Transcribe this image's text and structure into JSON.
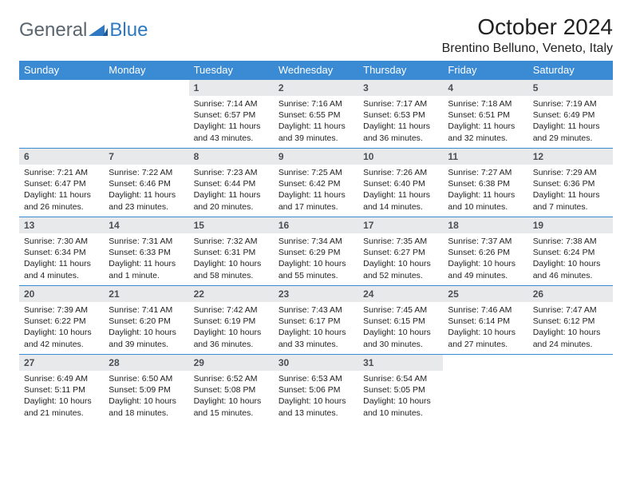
{
  "brand": {
    "general": "General",
    "blue": "Blue"
  },
  "title": "October 2024",
  "location": "Brentino Belluno, Veneto, Italy",
  "colors": {
    "header_bg": "#3b8bd4",
    "header_text": "#ffffff",
    "daynum_bg": "#e7e9eb",
    "daynum_text": "#4a4f55",
    "border": "#3b8bd4",
    "logo_gray": "#5a6570",
    "logo_blue": "#2f79c2",
    "background": "#ffffff"
  },
  "typography": {
    "title_fontsize": 28,
    "location_fontsize": 16,
    "header_fontsize": 13,
    "daynum_fontsize": 12,
    "body_fontsize": 10.5
  },
  "weekdays": [
    "Sunday",
    "Monday",
    "Tuesday",
    "Wednesday",
    "Thursday",
    "Friday",
    "Saturday"
  ],
  "weeks": [
    [
      null,
      null,
      {
        "n": "1",
        "sunrise": "Sunrise: 7:14 AM",
        "sunset": "Sunset: 6:57 PM",
        "day1": "Daylight: 11 hours",
        "day2": "and 43 minutes."
      },
      {
        "n": "2",
        "sunrise": "Sunrise: 7:16 AM",
        "sunset": "Sunset: 6:55 PM",
        "day1": "Daylight: 11 hours",
        "day2": "and 39 minutes."
      },
      {
        "n": "3",
        "sunrise": "Sunrise: 7:17 AM",
        "sunset": "Sunset: 6:53 PM",
        "day1": "Daylight: 11 hours",
        "day2": "and 36 minutes."
      },
      {
        "n": "4",
        "sunrise": "Sunrise: 7:18 AM",
        "sunset": "Sunset: 6:51 PM",
        "day1": "Daylight: 11 hours",
        "day2": "and 32 minutes."
      },
      {
        "n": "5",
        "sunrise": "Sunrise: 7:19 AM",
        "sunset": "Sunset: 6:49 PM",
        "day1": "Daylight: 11 hours",
        "day2": "and 29 minutes."
      }
    ],
    [
      {
        "n": "6",
        "sunrise": "Sunrise: 7:21 AM",
        "sunset": "Sunset: 6:47 PM",
        "day1": "Daylight: 11 hours",
        "day2": "and 26 minutes."
      },
      {
        "n": "7",
        "sunrise": "Sunrise: 7:22 AM",
        "sunset": "Sunset: 6:46 PM",
        "day1": "Daylight: 11 hours",
        "day2": "and 23 minutes."
      },
      {
        "n": "8",
        "sunrise": "Sunrise: 7:23 AM",
        "sunset": "Sunset: 6:44 PM",
        "day1": "Daylight: 11 hours",
        "day2": "and 20 minutes."
      },
      {
        "n": "9",
        "sunrise": "Sunrise: 7:25 AM",
        "sunset": "Sunset: 6:42 PM",
        "day1": "Daylight: 11 hours",
        "day2": "and 17 minutes."
      },
      {
        "n": "10",
        "sunrise": "Sunrise: 7:26 AM",
        "sunset": "Sunset: 6:40 PM",
        "day1": "Daylight: 11 hours",
        "day2": "and 14 minutes."
      },
      {
        "n": "11",
        "sunrise": "Sunrise: 7:27 AM",
        "sunset": "Sunset: 6:38 PM",
        "day1": "Daylight: 11 hours",
        "day2": "and 10 minutes."
      },
      {
        "n": "12",
        "sunrise": "Sunrise: 7:29 AM",
        "sunset": "Sunset: 6:36 PM",
        "day1": "Daylight: 11 hours",
        "day2": "and 7 minutes."
      }
    ],
    [
      {
        "n": "13",
        "sunrise": "Sunrise: 7:30 AM",
        "sunset": "Sunset: 6:34 PM",
        "day1": "Daylight: 11 hours",
        "day2": "and 4 minutes."
      },
      {
        "n": "14",
        "sunrise": "Sunrise: 7:31 AM",
        "sunset": "Sunset: 6:33 PM",
        "day1": "Daylight: 11 hours",
        "day2": "and 1 minute."
      },
      {
        "n": "15",
        "sunrise": "Sunrise: 7:32 AM",
        "sunset": "Sunset: 6:31 PM",
        "day1": "Daylight: 10 hours",
        "day2": "and 58 minutes."
      },
      {
        "n": "16",
        "sunrise": "Sunrise: 7:34 AM",
        "sunset": "Sunset: 6:29 PM",
        "day1": "Daylight: 10 hours",
        "day2": "and 55 minutes."
      },
      {
        "n": "17",
        "sunrise": "Sunrise: 7:35 AM",
        "sunset": "Sunset: 6:27 PM",
        "day1": "Daylight: 10 hours",
        "day2": "and 52 minutes."
      },
      {
        "n": "18",
        "sunrise": "Sunrise: 7:37 AM",
        "sunset": "Sunset: 6:26 PM",
        "day1": "Daylight: 10 hours",
        "day2": "and 49 minutes."
      },
      {
        "n": "19",
        "sunrise": "Sunrise: 7:38 AM",
        "sunset": "Sunset: 6:24 PM",
        "day1": "Daylight: 10 hours",
        "day2": "and 46 minutes."
      }
    ],
    [
      {
        "n": "20",
        "sunrise": "Sunrise: 7:39 AM",
        "sunset": "Sunset: 6:22 PM",
        "day1": "Daylight: 10 hours",
        "day2": "and 42 minutes."
      },
      {
        "n": "21",
        "sunrise": "Sunrise: 7:41 AM",
        "sunset": "Sunset: 6:20 PM",
        "day1": "Daylight: 10 hours",
        "day2": "and 39 minutes."
      },
      {
        "n": "22",
        "sunrise": "Sunrise: 7:42 AM",
        "sunset": "Sunset: 6:19 PM",
        "day1": "Daylight: 10 hours",
        "day2": "and 36 minutes."
      },
      {
        "n": "23",
        "sunrise": "Sunrise: 7:43 AM",
        "sunset": "Sunset: 6:17 PM",
        "day1": "Daylight: 10 hours",
        "day2": "and 33 minutes."
      },
      {
        "n": "24",
        "sunrise": "Sunrise: 7:45 AM",
        "sunset": "Sunset: 6:15 PM",
        "day1": "Daylight: 10 hours",
        "day2": "and 30 minutes."
      },
      {
        "n": "25",
        "sunrise": "Sunrise: 7:46 AM",
        "sunset": "Sunset: 6:14 PM",
        "day1": "Daylight: 10 hours",
        "day2": "and 27 minutes."
      },
      {
        "n": "26",
        "sunrise": "Sunrise: 7:47 AM",
        "sunset": "Sunset: 6:12 PM",
        "day1": "Daylight: 10 hours",
        "day2": "and 24 minutes."
      }
    ],
    [
      {
        "n": "27",
        "sunrise": "Sunrise: 6:49 AM",
        "sunset": "Sunset: 5:11 PM",
        "day1": "Daylight: 10 hours",
        "day2": "and 21 minutes."
      },
      {
        "n": "28",
        "sunrise": "Sunrise: 6:50 AM",
        "sunset": "Sunset: 5:09 PM",
        "day1": "Daylight: 10 hours",
        "day2": "and 18 minutes."
      },
      {
        "n": "29",
        "sunrise": "Sunrise: 6:52 AM",
        "sunset": "Sunset: 5:08 PM",
        "day1": "Daylight: 10 hours",
        "day2": "and 15 minutes."
      },
      {
        "n": "30",
        "sunrise": "Sunrise: 6:53 AM",
        "sunset": "Sunset: 5:06 PM",
        "day1": "Daylight: 10 hours",
        "day2": "and 13 minutes."
      },
      {
        "n": "31",
        "sunrise": "Sunrise: 6:54 AM",
        "sunset": "Sunset: 5:05 PM",
        "day1": "Daylight: 10 hours",
        "day2": "and 10 minutes."
      },
      null,
      null
    ]
  ]
}
